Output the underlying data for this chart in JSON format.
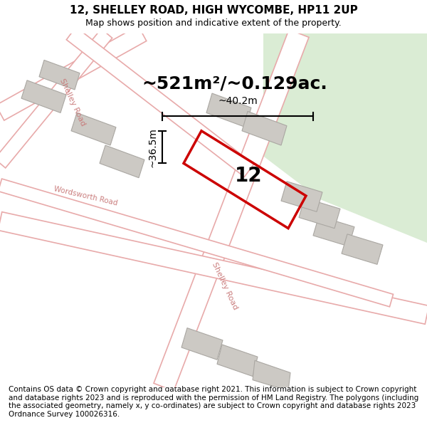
{
  "title": "12, SHELLEY ROAD, HIGH WYCOMBE, HP11 2UP",
  "subtitle": "Map shows position and indicative extent of the property.",
  "area_text": "~521m²/~0.129ac.",
  "label_12": "12",
  "dim_height": "~36.5m",
  "dim_width": "~40.2m",
  "footer": "Contains OS data © Crown copyright and database right 2021. This information is subject to Crown copyright and database rights 2023 and is reproduced with the permission of HM Land Registry. The polygons (including the associated geometry, namely x, y co-ordinates) are subject to Crown copyright and database rights 2023 Ordnance Survey 100026316.",
  "bg_map_color": "#ede9e3",
  "bg_green_color": "#daecd4",
  "building_fill": "#ccc9c4",
  "red_polygon_color": "#cc0000",
  "road_fill": "#ffffff",
  "road_edge_color": "#e8aaaa",
  "road_label_color": "#c87878",
  "dim_line_color": "#000000",
  "title_fontsize": 11,
  "subtitle_fontsize": 9,
  "area_fontsize": 18,
  "label_fontsize": 20,
  "dim_fontsize": 10,
  "footer_fontsize": 7.5
}
